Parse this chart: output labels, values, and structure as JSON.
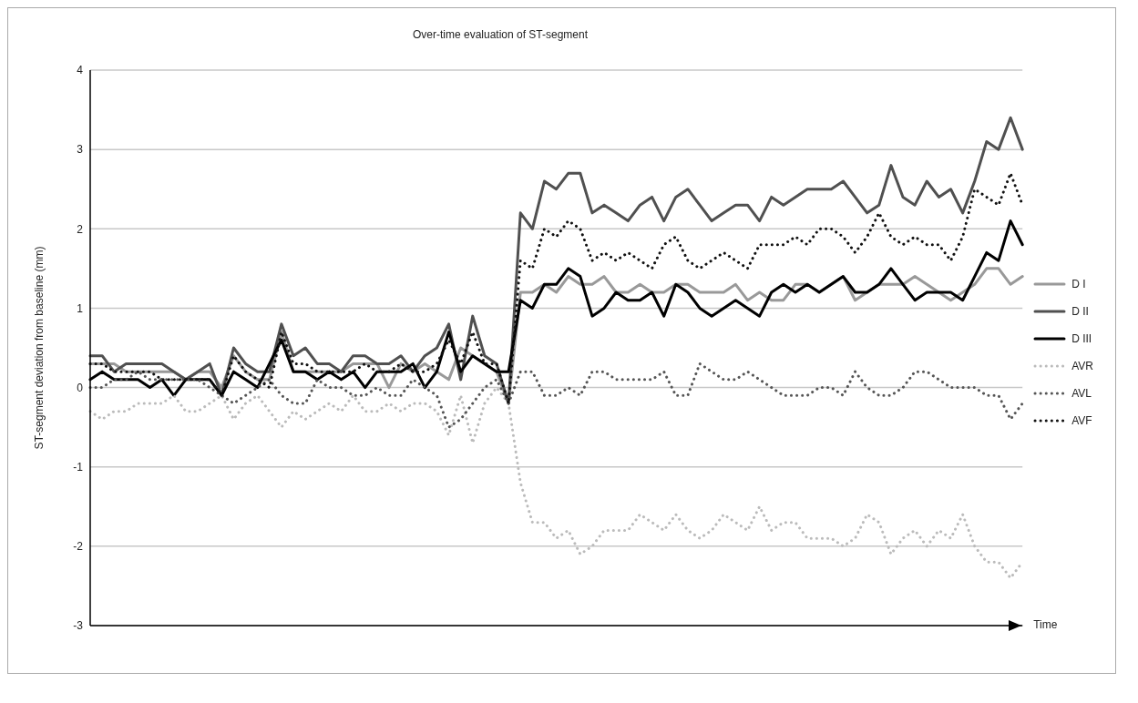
{
  "chart_data": {
    "type": "line",
    "title": "Over-time evaluation of ST-segment",
    "xlabel": "Time",
    "ylabel": "ST-segment deviation from baseline (mm)",
    "categories": [
      null,
      null,
      null,
      null,
      null,
      null,
      null,
      null,
      null,
      null,
      null,
      null,
      null,
      null,
      null,
      null,
      null,
      null,
      null,
      null,
      null,
      null,
      null,
      null,
      null,
      null,
      null,
      null,
      null,
      null,
      null,
      null,
      null,
      null,
      null,
      null,
      null,
      null,
      null,
      null,
      null,
      null,
      null,
      null,
      null,
      null,
      null,
      null,
      null,
      null,
      null,
      null,
      null,
      null,
      null,
      null,
      null,
      null,
      null,
      null,
      null,
      null,
      null,
      null,
      null,
      null,
      null,
      null,
      null,
      null,
      null,
      null,
      null,
      null,
      null,
      null,
      null,
      null,
      null
    ],
    "ylim": [
      -3,
      4
    ],
    "yticks": [
      -3,
      -2,
      -1,
      0,
      1,
      2,
      3,
      4
    ],
    "grid": "y",
    "legend": "right",
    "marker": "none",
    "tick_labels": "y",
    "series": [
      {
        "name": "D I",
        "color": "#999999",
        "line_style": "solid",
        "values": [
          0.3,
          0.3,
          0.3,
          0.2,
          0.2,
          0.2,
          0.2,
          0.2,
          0.1,
          0.2,
          0.2,
          0,
          0.4,
          0.2,
          0.1,
          0.1,
          0.7,
          0.2,
          0.2,
          0.2,
          0.2,
          0.2,
          0.3,
          0.3,
          0.3,
          0,
          0.3,
          0.2,
          0.3,
          0.2,
          0.1,
          0.5,
          0.4,
          0.3,
          0.2,
          -0.2,
          1.2,
          1.2,
          1.3,
          1.2,
          1.4,
          1.3,
          1.3,
          1.4,
          1.2,
          1.2,
          1.3,
          1.2,
          1.2,
          1.3,
          1.3,
          1.2,
          1.2,
          1.2,
          1.3,
          1.1,
          1.2,
          1.1,
          1.1,
          1.3,
          1.3,
          1.2,
          1.3,
          1.4,
          1.1,
          1.2,
          1.3,
          1.3,
          1.3,
          1.4,
          1.3,
          1.2,
          1.1,
          1.2,
          1.3,
          1.5,
          1.5,
          1.3,
          1.4
        ]
      },
      {
        "name": "D II",
        "color": "#505050",
        "line_style": "solid",
        "values": [
          0.4,
          0.4,
          0.2,
          0.3,
          0.3,
          0.3,
          0.3,
          0.2,
          0.1,
          0.2,
          0.3,
          -0.1,
          0.5,
          0.3,
          0.2,
          0.2,
          0.8,
          0.4,
          0.5,
          0.3,
          0.3,
          0.2,
          0.4,
          0.4,
          0.3,
          0.3,
          0.4,
          0.2,
          0.4,
          0.5,
          0.8,
          0.1,
          0.9,
          0.4,
          0.3,
          -0.2,
          2.2,
          2.0,
          2.6,
          2.5,
          2.7,
          2.7,
          2.2,
          2.3,
          2.2,
          2.1,
          2.3,
          2.4,
          2.1,
          2.4,
          2.5,
          2.3,
          2.1,
          2.2,
          2.3,
          2.3,
          2.1,
          2.4,
          2.3,
          2.4,
          2.5,
          2.5,
          2.5,
          2.6,
          2.4,
          2.2,
          2.3,
          2.8,
          2.4,
          2.3,
          2.6,
          2.4,
          2.5,
          2.2,
          2.6,
          3.1,
          3.0,
          3.4,
          3.0
        ]
      },
      {
        "name": "D III",
        "color": "#000000",
        "line_style": "solid",
        "values": [
          0.1,
          0.2,
          0.1,
          0.1,
          0.1,
          0,
          0.1,
          -0.1,
          0.1,
          0.1,
          0.1,
          -0.1,
          0.2,
          0.1,
          0,
          0.3,
          0.6,
          0.2,
          0.2,
          0.1,
          0.2,
          0.1,
          0.2,
          0,
          0.2,
          0.2,
          0.2,
          0.3,
          0,
          0.2,
          0.7,
          0.2,
          0.4,
          0.3,
          0.2,
          0.2,
          1.1,
          1.0,
          1.3,
          1.3,
          1.5,
          1.4,
          0.9,
          1.0,
          1.2,
          1.1,
          1.1,
          1.2,
          0.9,
          1.3,
          1.2,
          1.0,
          0.9,
          1.0,
          1.1,
          1.0,
          0.9,
          1.2,
          1.3,
          1.2,
          1.3,
          1.2,
          1.3,
          1.4,
          1.2,
          1.2,
          1.3,
          1.5,
          1.3,
          1.1,
          1.2,
          1.2,
          1.2,
          1.1,
          1.4,
          1.7,
          1.6,
          2.1,
          1.8
        ]
      },
      {
        "name": "AVR",
        "color": "#bbbbbb",
        "line_style": "dotted",
        "values": [
          -0.3,
          -0.4,
          -0.3,
          -0.3,
          -0.2,
          -0.2,
          -0.2,
          -0.1,
          -0.3,
          -0.3,
          -0.2,
          -0.1,
          -0.4,
          -0.2,
          -0.1,
          -0.3,
          -0.5,
          -0.3,
          -0.4,
          -0.3,
          -0.2,
          -0.3,
          -0.1,
          -0.3,
          -0.3,
          -0.2,
          -0.3,
          -0.2,
          -0.2,
          -0.3,
          -0.6,
          -0.1,
          -0.7,
          -0.2,
          0,
          -0.2,
          -1.2,
          -1.7,
          -1.7,
          -1.9,
          -1.8,
          -2.1,
          -2.0,
          -1.8,
          -1.8,
          -1.8,
          -1.6,
          -1.7,
          -1.8,
          -1.6,
          -1.8,
          -1.9,
          -1.8,
          -1.6,
          -1.7,
          -1.8,
          -1.5,
          -1.8,
          -1.7,
          -1.7,
          -1.9,
          -1.9,
          -1.9,
          -2.0,
          -1.9,
          -1.6,
          -1.7,
          -2.1,
          -1.9,
          -1.8,
          -2.0,
          -1.8,
          -1.9,
          -1.6,
          -2.0,
          -2.2,
          -2.2,
          -2.4,
          -2.2
        ]
      },
      {
        "name": "AVL",
        "color": "#555555",
        "line_style": "dotted",
        "values": [
          0,
          0,
          0.1,
          0.1,
          0.2,
          0.1,
          0.1,
          0.1,
          0.1,
          0.1,
          0,
          -0.1,
          -0.2,
          -0.1,
          0,
          0.1,
          -0.1,
          -0.2,
          -0.2,
          0.1,
          0,
          0,
          -0.1,
          -0.1,
          0,
          -0.1,
          -0.1,
          0.1,
          0,
          -0.1,
          -0.5,
          -0.4,
          -0.2,
          0,
          0.1,
          -0.2,
          0.2,
          0.2,
          -0.1,
          -0.1,
          0,
          -0.1,
          0.2,
          0.2,
          0.1,
          0.1,
          0.1,
          0.1,
          0.2,
          -0.1,
          -0.1,
          0.3,
          0.2,
          0.1,
          0.1,
          0.2,
          0.1,
          0,
          -0.1,
          -0.1,
          -0.1,
          0,
          0,
          -0.1,
          0.2,
          0,
          -0.1,
          -0.1,
          0,
          0.2,
          0.2,
          0.1,
          0,
          0,
          0,
          -0.1,
          -0.1,
          -0.4,
          -0.2
        ]
      },
      {
        "name": "AVF",
        "color": "#111111",
        "line_style": "dotted",
        "values": [
          0.3,
          0.3,
          0.2,
          0.2,
          0.2,
          0.2,
          0.1,
          0.1,
          0.1,
          0.1,
          0.1,
          -0.1,
          0.4,
          0.2,
          0.1,
          0,
          0.7,
          0.3,
          0.3,
          0.2,
          0.2,
          0.2,
          0.2,
          0.3,
          0.2,
          0.2,
          0.3,
          0.2,
          0.2,
          0.3,
          0.6,
          0.3,
          0.7,
          0.3,
          0.3,
          -0.2,
          1.6,
          1.5,
          2.0,
          1.9,
          2.1,
          2.0,
          1.6,
          1.7,
          1.6,
          1.7,
          1.6,
          1.5,
          1.8,
          1.9,
          1.6,
          1.5,
          1.6,
          1.7,
          1.6,
          1.5,
          1.8,
          1.8,
          1.8,
          1.9,
          1.8,
          2.0,
          2.0,
          1.9,
          1.7,
          1.9,
          2.2,
          1.9,
          1.8,
          1.9,
          1.8,
          1.8,
          1.6,
          1.9,
          2.5,
          2.4,
          2.3,
          2.7,
          2.3
        ]
      }
    ]
  }
}
